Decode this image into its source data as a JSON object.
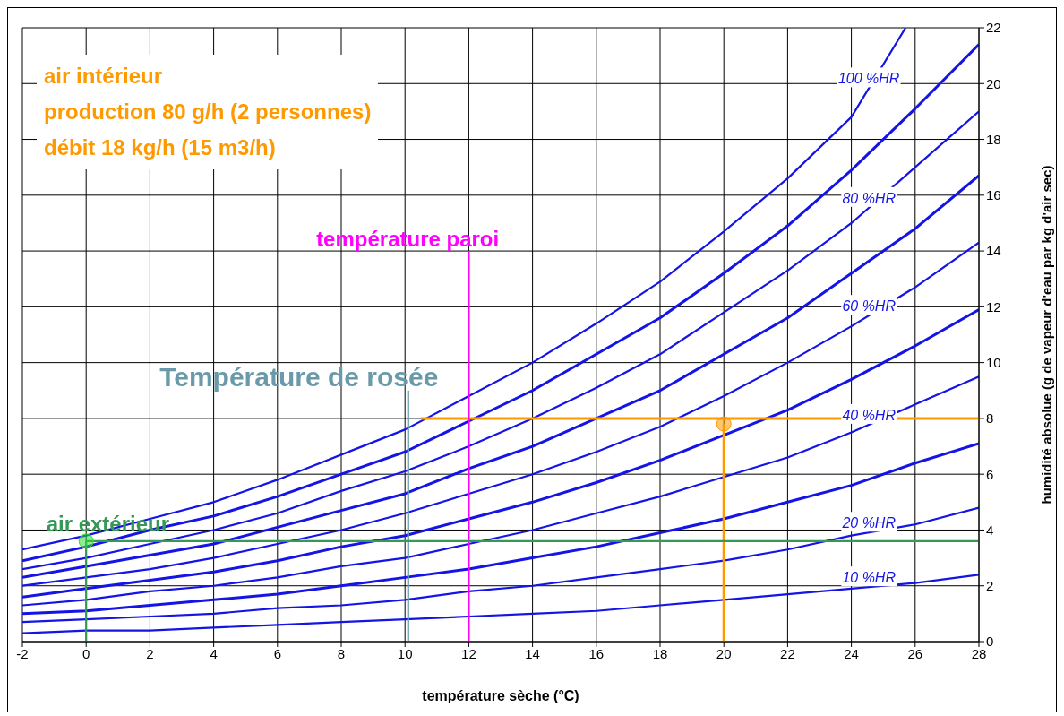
{
  "chart_data": {
    "type": "line",
    "xlabel": "température sèche (°C)",
    "ylabel": "humidité absolue (g de vapeur d'eau par kg d'air sec)",
    "xlim": [
      -2,
      28
    ],
    "xticks": [
      -2,
      0,
      2,
      4,
      6,
      8,
      10,
      12,
      14,
      16,
      18,
      20,
      22,
      24,
      26,
      28
    ],
    "ylim": [
      0,
      22
    ],
    "yticks": [
      0,
      2,
      4,
      6,
      8,
      10,
      12,
      14,
      16,
      18,
      20,
      22
    ],
    "grid": true,
    "marker": "none",
    "line_style": "solid",
    "annotations": [
      "air intérieur",
      "production  80 g/h (2 personnes)",
      "débit 18 kg/h (15 m3/h)"
    ],
    "series": [
      {
        "name": "100 %HR",
        "color": "#1414e6",
        "x": [
          -2,
          0,
          2,
          4,
          6,
          8,
          10,
          12,
          14,
          16,
          18,
          20,
          22,
          24,
          25.7
        ],
        "values": [
          3.3,
          3.8,
          4.4,
          5.0,
          5.8,
          6.7,
          7.6,
          8.8,
          10.0,
          11.4,
          12.9,
          14.7,
          16.6,
          18.8,
          22.0
        ]
      },
      {
        "color": "#1414e6",
        "x": [
          -2,
          0,
          2,
          4,
          6,
          8,
          10,
          12,
          14,
          16,
          18,
          20,
          22,
          24,
          26,
          28
        ],
        "values": [
          2.9,
          3.4,
          4.0,
          4.5,
          5.2,
          6.0,
          6.8,
          7.9,
          9.0,
          10.3,
          11.6,
          13.2,
          14.9,
          16.9,
          19.1,
          21.4
        ]
      },
      {
        "name": "80 %HR",
        "color": "#1414e6",
        "x": [
          -2,
          0,
          2,
          4,
          6,
          8,
          10,
          12,
          14,
          16,
          18,
          20,
          22,
          24,
          26,
          28
        ],
        "values": [
          2.6,
          3.0,
          3.5,
          4.0,
          4.6,
          5.4,
          6.1,
          7.0,
          8.0,
          9.1,
          10.3,
          11.8,
          13.3,
          15.0,
          17.0,
          19.0
        ]
      },
      {
        "color": "#1414e6",
        "x": [
          -2,
          0,
          2,
          4,
          6,
          8,
          10,
          12,
          14,
          16,
          18,
          20,
          22,
          24,
          26,
          28
        ],
        "values": [
          2.3,
          2.7,
          3.1,
          3.5,
          4.1,
          4.7,
          5.3,
          6.2,
          7.0,
          8.0,
          9.0,
          10.3,
          11.6,
          13.2,
          14.8,
          16.7
        ]
      },
      {
        "name": "60 %HR",
        "color": "#1414e6",
        "x": [
          -2,
          0,
          2,
          4,
          6,
          8,
          10,
          12,
          14,
          16,
          18,
          20,
          22,
          24,
          26,
          28
        ],
        "values": [
          2.0,
          2.3,
          2.6,
          3.0,
          3.5,
          4.0,
          4.6,
          5.3,
          6.0,
          6.8,
          7.7,
          8.8,
          10.0,
          11.3,
          12.7,
          14.3
        ]
      },
      {
        "color": "#1414e6",
        "x": [
          -2,
          0,
          2,
          4,
          6,
          8,
          10,
          12,
          14,
          16,
          18,
          20,
          22,
          24,
          26,
          28
        ],
        "values": [
          1.6,
          1.9,
          2.2,
          2.5,
          2.9,
          3.4,
          3.8,
          4.4,
          5.0,
          5.7,
          6.5,
          7.4,
          8.3,
          9.4,
          10.6,
          11.9
        ]
      },
      {
        "name": "40 %HR",
        "color": "#1414e6",
        "x": [
          -2,
          0,
          2,
          4,
          6,
          8,
          10,
          12,
          14,
          16,
          18,
          20,
          22,
          24,
          26,
          28
        ],
        "values": [
          1.3,
          1.5,
          1.8,
          2.0,
          2.3,
          2.7,
          3.0,
          3.5,
          4.0,
          4.6,
          5.2,
          5.9,
          6.6,
          7.5,
          8.5,
          9.5
        ]
      },
      {
        "color": "#1414e6",
        "x": [
          -2,
          0,
          2,
          4,
          6,
          8,
          10,
          12,
          14,
          16,
          18,
          20,
          22,
          24,
          26,
          28
        ],
        "values": [
          1.0,
          1.1,
          1.3,
          1.5,
          1.7,
          2.0,
          2.3,
          2.6,
          3.0,
          3.4,
          3.9,
          4.4,
          5.0,
          5.6,
          6.4,
          7.1
        ]
      },
      {
        "name": "20 %HR",
        "color": "#1414e6",
        "x": [
          -2,
          0,
          2,
          4,
          6,
          8,
          10,
          12,
          14,
          16,
          18,
          20,
          22,
          24,
          26,
          28
        ],
        "values": [
          0.7,
          0.8,
          0.9,
          1.0,
          1.2,
          1.3,
          1.5,
          1.8,
          2.0,
          2.3,
          2.6,
          2.9,
          3.3,
          3.8,
          4.2,
          4.8
        ]
      },
      {
        "name": "10 %HR",
        "color": "#1414e6",
        "x": [
          -2,
          0,
          2,
          4,
          6,
          8,
          10,
          12,
          14,
          16,
          18,
          20,
          22,
          24,
          26,
          28
        ],
        "values": [
          0.3,
          0.4,
          0.4,
          0.5,
          0.6,
          0.7,
          0.8,
          0.9,
          1.0,
          1.1,
          1.3,
          1.5,
          1.7,
          1.9,
          2.1,
          2.4
        ]
      },
      {
        "color": "#ff9900",
        "x": [
          10.5,
          28
        ],
        "values": [
          8,
          8
        ]
      },
      {
        "color": "#ff9900",
        "x": [
          20,
          20
        ],
        "values": [
          7.8,
          0
        ]
      },
      {
        "name": "température paroi",
        "color": "#ff00ff",
        "x": [
          12,
          12
        ],
        "values": [
          14,
          0
        ]
      },
      {
        "name": "Température de rosée",
        "color": "#6a9aaa",
        "x": [
          10.1,
          10.1
        ],
        "values": [
          9,
          0
        ]
      },
      {
        "name": "air extérieur",
        "color": "#339955",
        "x": [
          0,
          0,
          28
        ],
        "values": [
          0,
          3.6,
          3.6
        ]
      },
      {
        "type": "scatter",
        "marker": "circle",
        "color": "#ff9900",
        "x": [
          20
        ],
        "values": [
          7.8
        ]
      },
      {
        "type": "scatter",
        "marker": "circle",
        "color": "#33dd33",
        "x": [
          0
        ],
        "values": [
          3.6
        ]
      }
    ]
  }
}
